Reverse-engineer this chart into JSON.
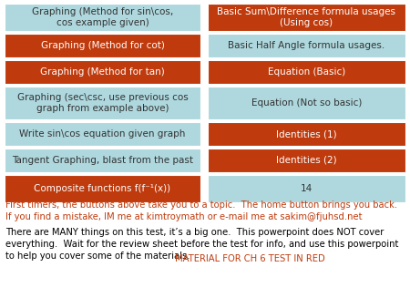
{
  "left_cells": [
    {
      "text": "Graphing (Method for sin\\cos,\ncos example given)",
      "color": "#aed8de"
    },
    {
      "text": "Graphing (Method for cot)",
      "color": "#bf3a0c"
    },
    {
      "text": "Graphing (Method for tan)",
      "color": "#bf3a0c"
    },
    {
      "text": "Graphing (sec\\csc, use previous cos\ngraph from example above)",
      "color": "#aed8de"
    },
    {
      "text": "Write sin\\cos equation given graph",
      "color": "#aed8de"
    },
    {
      "text": "Tangent Graphing, blast from the past",
      "color": "#aed8de"
    },
    {
      "text": "Composite functions f(f⁻¹(x))",
      "color": "#bf3a0c"
    }
  ],
  "right_cells": [
    {
      "text": "Basic Sum\\Difference formula usages\n(Using cos)",
      "color": "#bf3a0c"
    },
    {
      "text": "Basic Half Angle formula usages.",
      "color": "#aed8de"
    },
    {
      "text": "Equation (Basic)",
      "color": "#bf3a0c"
    },
    {
      "text": "Equation (Not so basic)",
      "color": "#aed8de"
    },
    {
      "text": "Identities (1)",
      "color": "#bf3a0c"
    },
    {
      "text": "Identities (2)",
      "color": "#bf3a0c"
    },
    {
      "text": "14",
      "color": "#aed8de"
    }
  ],
  "text_dark": "#333333",
  "text_white": "#ffffff",
  "red_color": "#bf3a0c",
  "footer_red_line1": "First timers, the buttons above take you to a topic.  The home button brings you back.",
  "footer_red_line2": "If you find a mistake, IM me at kimtroymath or e-mail me at sakim@fjuhsd.net",
  "footer_black_para": "There are MANY things on this test, it’s a big one.  This powerpoint does NOT cover\neverything.  Wait for the review sheet before the test for info, and use this powerpoint\nto help you cover some of the materials.  ",
  "footer_red_inline": "MATERIAL FOR CH 6 TEST IN RED",
  "cell_font_size": 7.5,
  "footer_font_size": 7.2
}
